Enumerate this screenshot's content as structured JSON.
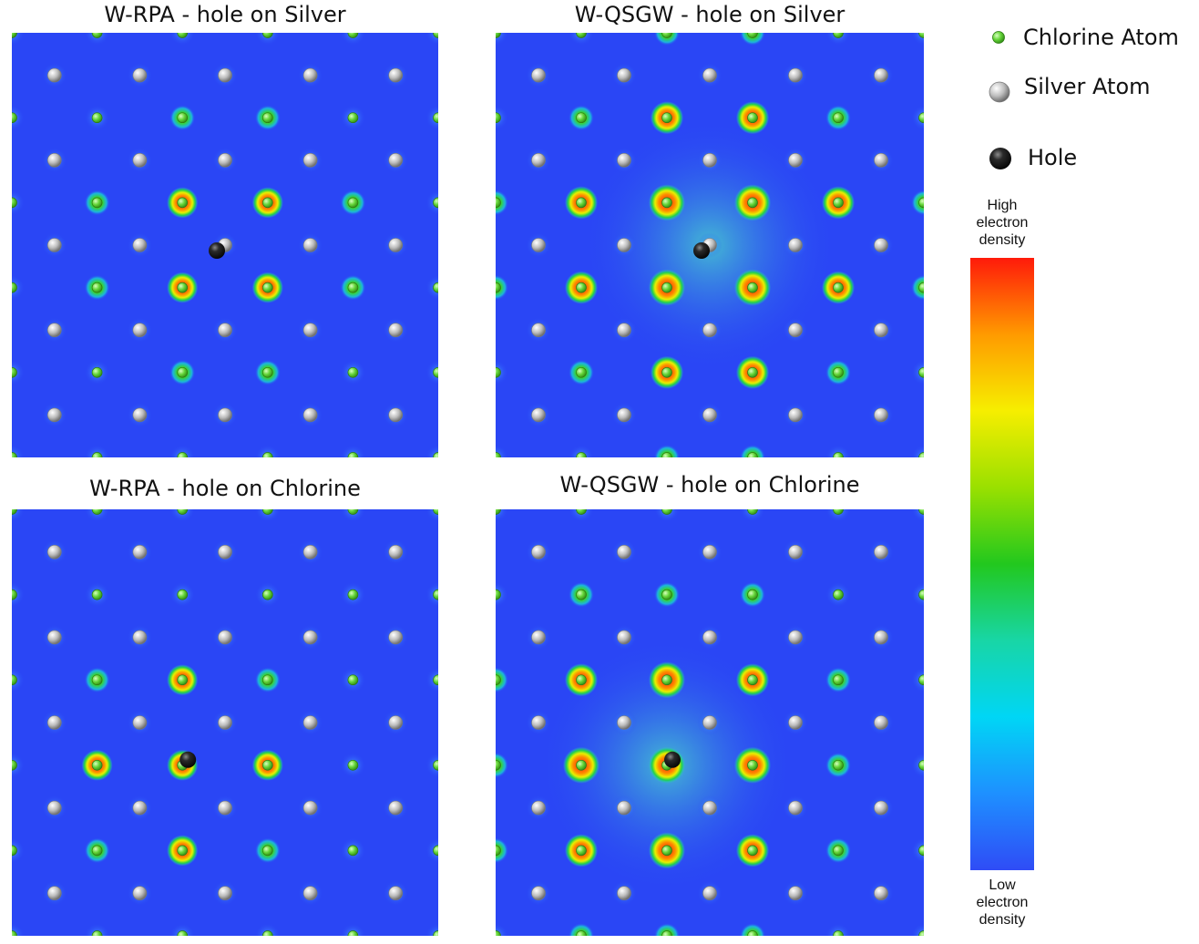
{
  "panels": [
    {
      "title": "W-RPA - hole on Silver",
      "hole_site": "silver",
      "screening": "rpa"
    },
    {
      "title": "W-QSGW - hole on Silver",
      "hole_site": "silver",
      "screening": "qsgw"
    },
    {
      "title": "W-RPA - hole on Chlorine",
      "hole_site": "chlorine",
      "screening": "rpa"
    },
    {
      "title": "W-QSGW - hole on Chlorine",
      "hole_site": "chlorine",
      "screening": "qsgw"
    }
  ],
  "legend": {
    "chlorine": "Chlorine Atom",
    "silver": "Silver Atom",
    "hole": "Hole"
  },
  "colorbar": {
    "high_label": [
      "High",
      "electron",
      "density"
    ],
    "low_label": [
      "Low",
      "electron",
      "density"
    ],
    "stops": [
      "#ff1a0a",
      "#ff9a00",
      "#f6ee00",
      "#9ae000",
      "#22c81e",
      "#18d6a6",
      "#00d6f5",
      "#1e90ff",
      "#2f4cf6"
    ]
  },
  "colors": {
    "background_field": "#2a46f5",
    "chlorine": "#66d63a",
    "silver": "#b4b4b4",
    "hole": "#141414"
  }
}
